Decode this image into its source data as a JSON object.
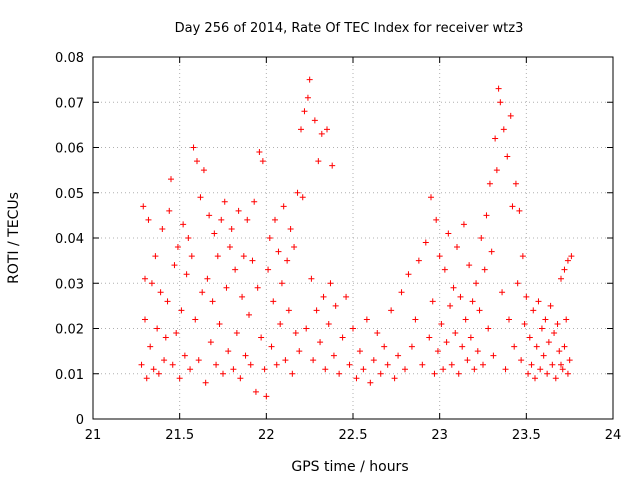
{
  "chart_data": {
    "type": "scatter",
    "title": "Day 256 of 2014, Rate Of TEC Index for receiver wtz3",
    "xlabel": "GPS time / hours",
    "ylabel": "ROTI / TECUs",
    "xlim": [
      21,
      24
    ],
    "ylim": [
      0,
      0.08
    ],
    "x_ticks": [
      21,
      21.5,
      22,
      22.5,
      23,
      23.5,
      24
    ],
    "x_tick_labels": [
      "21",
      "21.5",
      "22",
      "22.5",
      "23",
      "23.5",
      "24"
    ],
    "y_ticks": [
      0,
      0.01,
      0.02,
      0.03,
      0.04,
      0.05,
      0.06,
      0.07,
      0.08
    ],
    "y_tick_labels": [
      "0",
      "0.01",
      "0.02",
      "0.03",
      "0.04",
      "0.05",
      "0.06",
      "0.07",
      "0.08"
    ],
    "grid": true,
    "marker": "+",
    "color": "#ff0000",
    "series": [
      {
        "name": "ROTI",
        "points": [
          [
            21.28,
            0.012
          ],
          [
            21.29,
            0.047
          ],
          [
            21.3,
            0.031
          ],
          [
            21.3,
            0.022
          ],
          [
            21.31,
            0.009
          ],
          [
            21.32,
            0.044
          ],
          [
            21.33,
            0.016
          ],
          [
            21.34,
            0.03
          ],
          [
            21.35,
            0.011
          ],
          [
            21.36,
            0.036
          ],
          [
            21.37,
            0.02
          ],
          [
            21.38,
            0.01
          ],
          [
            21.39,
            0.028
          ],
          [
            21.4,
            0.042
          ],
          [
            21.41,
            0.013
          ],
          [
            21.42,
            0.018
          ],
          [
            21.43,
            0.026
          ],
          [
            21.44,
            0.046
          ],
          [
            21.45,
            0.053
          ],
          [
            21.46,
            0.012
          ],
          [
            21.47,
            0.034
          ],
          [
            21.48,
            0.019
          ],
          [
            21.49,
            0.038
          ],
          [
            21.5,
            0.009
          ],
          [
            21.51,
            0.024
          ],
          [
            21.52,
            0.043
          ],
          [
            21.53,
            0.014
          ],
          [
            21.54,
            0.032
          ],
          [
            21.55,
            0.04
          ],
          [
            21.56,
            0.011
          ],
          [
            21.57,
            0.036
          ],
          [
            21.58,
            0.06
          ],
          [
            21.59,
            0.022
          ],
          [
            21.6,
            0.057
          ],
          [
            21.61,
            0.013
          ],
          [
            21.62,
            0.049
          ],
          [
            21.63,
            0.028
          ],
          [
            21.64,
            0.055
          ],
          [
            21.65,
            0.008
          ],
          [
            21.66,
            0.031
          ],
          [
            21.67,
            0.045
          ],
          [
            21.68,
            0.017
          ],
          [
            21.69,
            0.026
          ],
          [
            21.7,
            0.041
          ],
          [
            21.71,
            0.012
          ],
          [
            21.72,
            0.036
          ],
          [
            21.73,
            0.021
          ],
          [
            21.74,
            0.044
          ],
          [
            21.75,
            0.01
          ],
          [
            21.76,
            0.048
          ],
          [
            21.77,
            0.029
          ],
          [
            21.78,
            0.015
          ],
          [
            21.79,
            0.038
          ],
          [
            21.8,
            0.042
          ],
          [
            21.81,
            0.011
          ],
          [
            21.82,
            0.033
          ],
          [
            21.83,
            0.019
          ],
          [
            21.84,
            0.046
          ],
          [
            21.85,
            0.009
          ],
          [
            21.86,
            0.027
          ],
          [
            21.87,
            0.036
          ],
          [
            21.88,
            0.014
          ],
          [
            21.89,
            0.044
          ],
          [
            21.9,
            0.023
          ],
          [
            21.91,
            0.012
          ],
          [
            21.92,
            0.035
          ],
          [
            21.93,
            0.048
          ],
          [
            21.94,
            0.006
          ],
          [
            21.95,
            0.029
          ],
          [
            21.96,
            0.059
          ],
          [
            21.97,
            0.018
          ],
          [
            21.98,
            0.057
          ],
          [
            21.99,
            0.011
          ],
          [
            22.0,
            0.005
          ],
          [
            22.01,
            0.033
          ],
          [
            22.02,
            0.04
          ],
          [
            22.03,
            0.016
          ],
          [
            22.04,
            0.026
          ],
          [
            22.05,
            0.044
          ],
          [
            22.06,
            0.012
          ],
          [
            22.07,
            0.037
          ],
          [
            22.08,
            0.021
          ],
          [
            22.09,
            0.03
          ],
          [
            22.1,
            0.047
          ],
          [
            22.11,
            0.013
          ],
          [
            22.12,
            0.035
          ],
          [
            22.13,
            0.024
          ],
          [
            22.14,
            0.042
          ],
          [
            22.15,
            0.01
          ],
          [
            22.16,
            0.038
          ],
          [
            22.17,
            0.019
          ],
          [
            22.18,
            0.05
          ],
          [
            22.19,
            0.015
          ],
          [
            22.2,
            0.064
          ],
          [
            22.21,
            0.049
          ],
          [
            22.22,
            0.068
          ],
          [
            22.23,
            0.02
          ],
          [
            22.24,
            0.071
          ],
          [
            22.25,
            0.075
          ],
          [
            22.26,
            0.031
          ],
          [
            22.27,
            0.013
          ],
          [
            22.28,
            0.066
          ],
          [
            22.29,
            0.024
          ],
          [
            22.3,
            0.057
          ],
          [
            22.31,
            0.017
          ],
          [
            22.32,
            0.063
          ],
          [
            22.33,
            0.027
          ],
          [
            22.34,
            0.011
          ],
          [
            22.35,
            0.064
          ],
          [
            22.36,
            0.021
          ],
          [
            22.37,
            0.03
          ],
          [
            22.38,
            0.056
          ],
          [
            22.39,
            0.014
          ],
          [
            22.4,
            0.025
          ],
          [
            22.42,
            0.01
          ],
          [
            22.44,
            0.018
          ],
          [
            22.46,
            0.027
          ],
          [
            22.48,
            0.012
          ],
          [
            22.5,
            0.02
          ],
          [
            22.52,
            0.009
          ],
          [
            22.54,
            0.015
          ],
          [
            22.56,
            0.011
          ],
          [
            22.58,
            0.022
          ],
          [
            22.6,
            0.008
          ],
          [
            22.62,
            0.013
          ],
          [
            22.64,
            0.019
          ],
          [
            22.66,
            0.01
          ],
          [
            22.68,
            0.016
          ],
          [
            22.7,
            0.012
          ],
          [
            22.72,
            0.024
          ],
          [
            22.74,
            0.009
          ],
          [
            22.76,
            0.014
          ],
          [
            22.78,
            0.028
          ],
          [
            22.8,
            0.011
          ],
          [
            22.82,
            0.032
          ],
          [
            22.84,
            0.016
          ],
          [
            22.86,
            0.022
          ],
          [
            22.88,
            0.035
          ],
          [
            22.9,
            0.012
          ],
          [
            22.92,
            0.039
          ],
          [
            22.94,
            0.018
          ],
          [
            22.95,
            0.049
          ],
          [
            22.96,
            0.026
          ],
          [
            22.97,
            0.01
          ],
          [
            22.98,
            0.044
          ],
          [
            22.99,
            0.015
          ],
          [
            23.0,
            0.036
          ],
          [
            23.01,
            0.021
          ],
          [
            23.02,
            0.011
          ],
          [
            23.03,
            0.033
          ],
          [
            23.04,
            0.017
          ],
          [
            23.05,
            0.041
          ],
          [
            23.06,
            0.025
          ],
          [
            23.07,
            0.012
          ],
          [
            23.08,
            0.029
          ],
          [
            23.09,
            0.019
          ],
          [
            23.1,
            0.038
          ],
          [
            23.11,
            0.01
          ],
          [
            23.12,
            0.027
          ],
          [
            23.13,
            0.016
          ],
          [
            23.14,
            0.043
          ],
          [
            23.15,
            0.022
          ],
          [
            23.16,
            0.013
          ],
          [
            23.17,
            0.034
          ],
          [
            23.18,
            0.018
          ],
          [
            23.19,
            0.026
          ],
          [
            23.2,
            0.011
          ],
          [
            23.21,
            0.03
          ],
          [
            23.22,
            0.015
          ],
          [
            23.23,
            0.024
          ],
          [
            23.24,
            0.04
          ],
          [
            23.25,
            0.012
          ],
          [
            23.26,
            0.033
          ],
          [
            23.27,
            0.045
          ],
          [
            23.28,
            0.02
          ],
          [
            23.29,
            0.052
          ],
          [
            23.3,
            0.037
          ],
          [
            23.31,
            0.014
          ],
          [
            23.32,
            0.062
          ],
          [
            23.33,
            0.055
          ],
          [
            23.34,
            0.073
          ],
          [
            23.35,
            0.07
          ],
          [
            23.36,
            0.028
          ],
          [
            23.37,
            0.064
          ],
          [
            23.38,
            0.011
          ],
          [
            23.39,
            0.058
          ],
          [
            23.4,
            0.022
          ],
          [
            23.41,
            0.067
          ],
          [
            23.42,
            0.047
          ],
          [
            23.43,
            0.016
          ],
          [
            23.44,
            0.052
          ],
          [
            23.45,
            0.03
          ],
          [
            23.46,
            0.046
          ],
          [
            23.47,
            0.013
          ],
          [
            23.48,
            0.036
          ],
          [
            23.49,
            0.021
          ],
          [
            23.5,
            0.027
          ],
          [
            23.51,
            0.01
          ],
          [
            23.52,
            0.018
          ],
          [
            23.53,
            0.012
          ],
          [
            23.54,
            0.024
          ],
          [
            23.55,
            0.009
          ],
          [
            23.56,
            0.016
          ],
          [
            23.57,
            0.026
          ],
          [
            23.58,
            0.011
          ],
          [
            23.59,
            0.02
          ],
          [
            23.6,
            0.014
          ],
          [
            23.61,
            0.022
          ],
          [
            23.62,
            0.01
          ],
          [
            23.63,
            0.017
          ],
          [
            23.64,
            0.025
          ],
          [
            23.65,
            0.012
          ],
          [
            23.66,
            0.019
          ],
          [
            23.67,
            0.009
          ],
          [
            23.68,
            0.021
          ],
          [
            23.69,
            0.015
          ],
          [
            23.7,
            0.031
          ],
          [
            23.71,
            0.011
          ],
          [
            23.72,
            0.033
          ],
          [
            23.73,
            0.022
          ],
          [
            23.74,
            0.035
          ],
          [
            23.75,
            0.013
          ],
          [
            23.76,
            0.036
          ],
          [
            23.74,
            0.01
          ],
          [
            23.72,
            0.016
          ],
          [
            23.7,
            0.012
          ]
        ]
      }
    ]
  }
}
